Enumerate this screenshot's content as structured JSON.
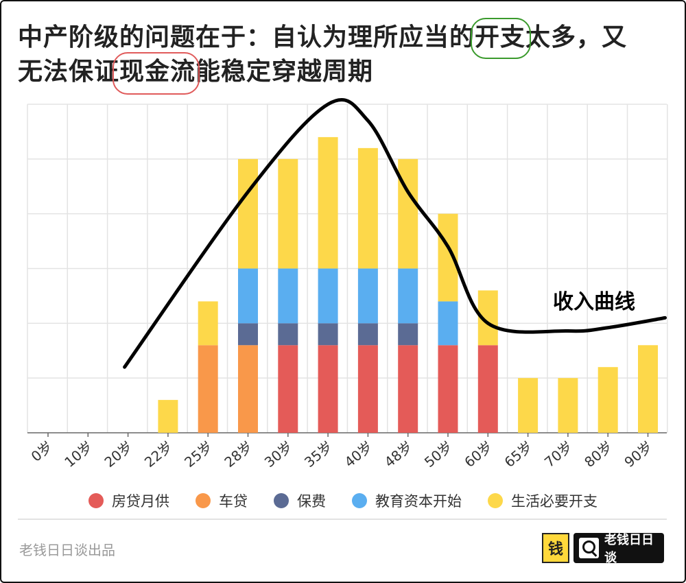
{
  "title": {
    "line1_prefix": "中产阶级的问题在于：自认为理所应当的",
    "line1_highlight": "开支",
    "line1_suffix": "太多，又",
    "line2_prefix": "无法保证",
    "line2_highlight": "现金流",
    "line2_suffix": "能稳定穿越周期"
  },
  "income_curve_label": "收入曲线",
  "footer": {
    "source": "老钱日日谈出品",
    "logo_glyph": "钱",
    "brand": "老钱日日谈"
  },
  "colors": {
    "mortgage": "#e45b58",
    "car_loan": "#f9984a",
    "insurance": "#5b6b94",
    "education": "#5aaef0",
    "living": "#fdd84a",
    "grid": "#e3e3e3",
    "axis": "#666666"
  },
  "chart_data": {
    "type": "bar",
    "stacked": true,
    "title": "中产阶级的问题在于：自认为理所应当的开支太多，又无法保证现金流能稳定穿越周期",
    "categories": [
      "0岁",
      "10岁",
      "20岁",
      "22岁",
      "25岁",
      "28岁",
      "30岁",
      "35岁",
      "40岁",
      "48岁",
      "50岁",
      "60岁",
      "65岁",
      "70岁",
      "80岁",
      "90岁"
    ],
    "series": [
      {
        "name": "房贷月供",
        "key": "mortgage",
        "values": [
          0,
          0,
          0,
          0,
          0,
          0,
          8,
          8,
          8,
          8,
          8,
          8,
          0,
          0,
          0,
          0
        ]
      },
      {
        "name": "车贷",
        "key": "car_loan",
        "values": [
          0,
          0,
          0,
          0,
          8,
          8,
          0,
          0,
          0,
          0,
          0,
          0,
          0,
          0,
          0,
          0
        ]
      },
      {
        "name": "保费",
        "key": "insurance",
        "values": [
          0,
          0,
          0,
          0,
          0,
          2,
          2,
          2,
          2,
          2,
          0,
          0,
          0,
          0,
          0,
          0
        ]
      },
      {
        "name": "教育资本开始",
        "key": "education",
        "values": [
          0,
          0,
          0,
          0,
          0,
          5,
          5,
          5,
          5,
          5,
          4,
          0,
          0,
          0,
          0,
          0
        ]
      },
      {
        "name": "生活必要开支",
        "key": "living",
        "values": [
          0,
          0,
          0,
          3,
          4,
          10,
          10,
          12,
          11,
          10,
          8,
          5,
          5,
          5,
          6,
          8
        ]
      }
    ],
    "income_curve": {
      "name": "收入曲线",
      "x": [
        "20岁",
        "28岁",
        "35岁",
        "40岁",
        "48岁",
        "50岁",
        "60岁",
        "70岁",
        "80岁",
        "90岁"
      ],
      "y": [
        6,
        22,
        30,
        28.5,
        22,
        17,
        10,
        9.3,
        9.6,
        10.5
      ]
    },
    "ylim": [
      0,
      30
    ],
    "grid": true,
    "legend_position": "bottom",
    "xlabel": "",
    "ylabel": ""
  }
}
